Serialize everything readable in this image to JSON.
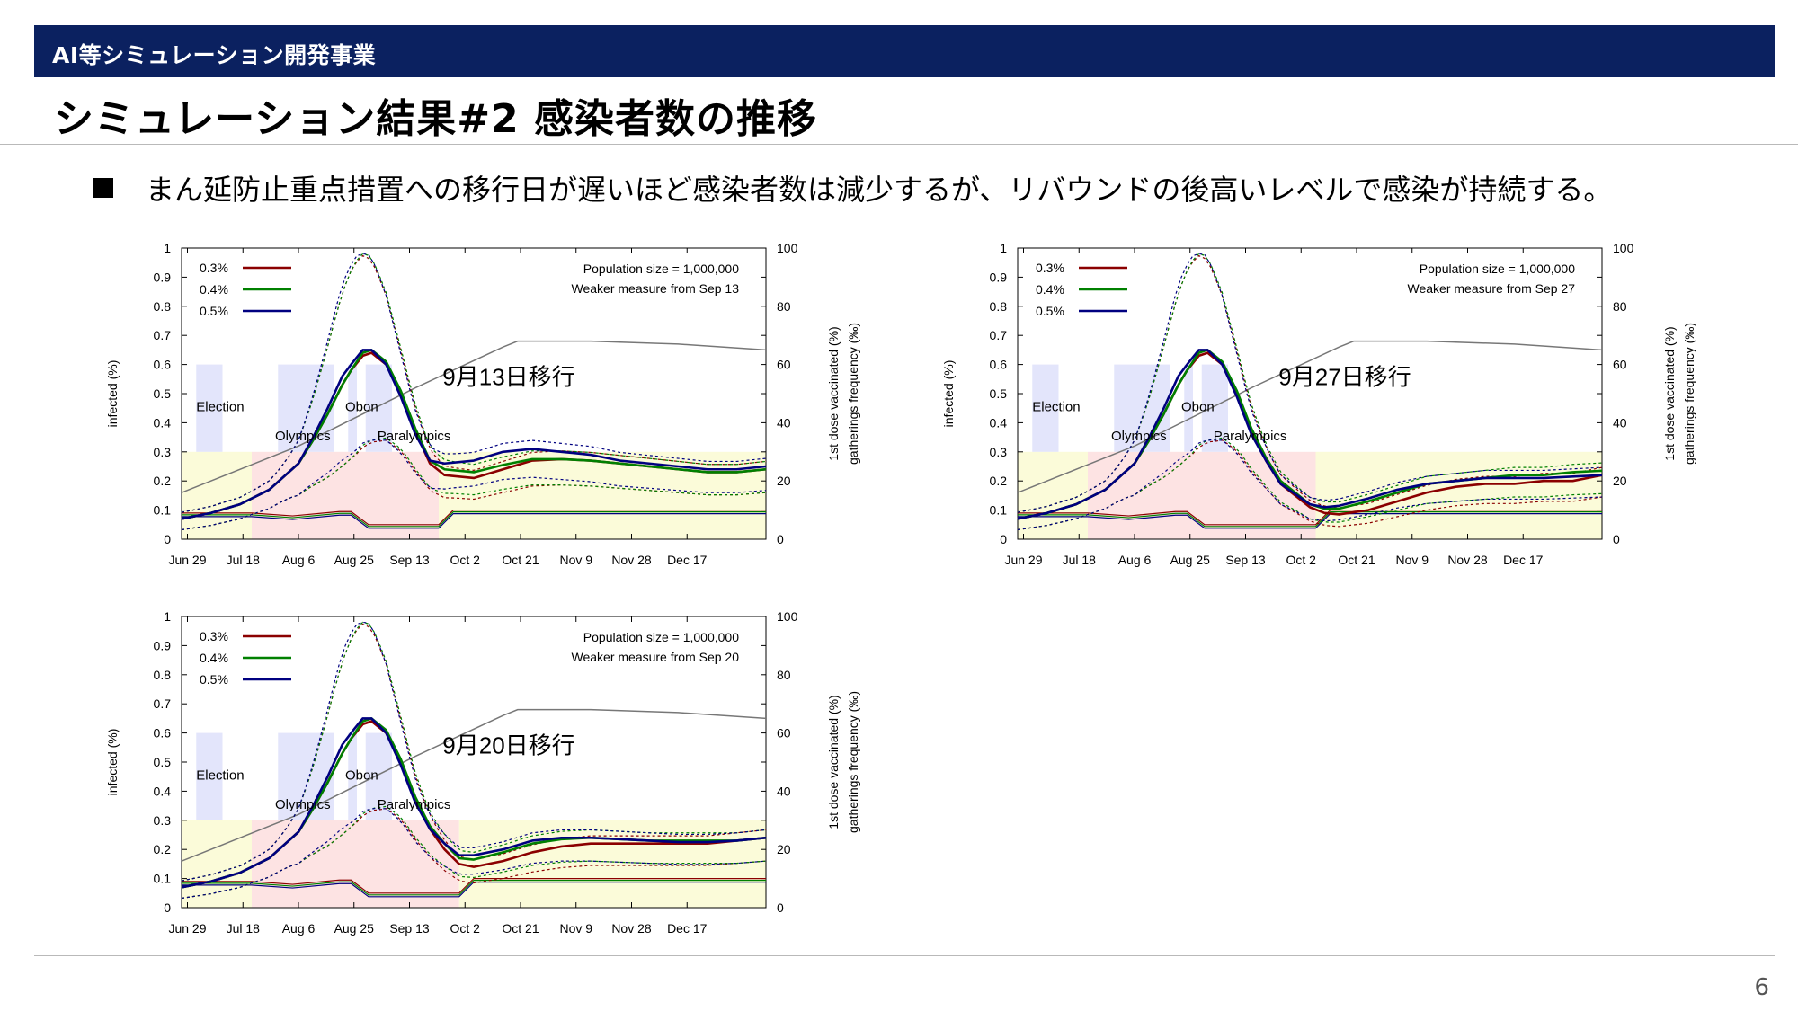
{
  "header": {
    "section": "AI等シミュレーション開発事業",
    "title": "シミュレーション結果#2 感染者数の推移",
    "bullet": "まん延防止重点措置への移行日が遅いほど感染者数は減少するが、リバウンドの後高いレベルで感染が持続する。",
    "page_number": "6"
  },
  "colors": {
    "banner": "#0b2160",
    "series_03": "#8b0000",
    "series_04": "#008000",
    "series_05": "#000080",
    "vaccinated": "#777777"
  },
  "chart_data": [
    {
      "type": "line",
      "annotation": "9月13日移行",
      "info": [
        "Population size = 1,000,000",
        "Weaker measure from Sep 13"
      ],
      "ylabel": "infected (%)",
      "y2label": [
        "1st dose vaccinated (%)",
        "gatherings frequency (‰)"
      ],
      "xticks": [
        "Jun 29",
        "Jul 18",
        "Aug 6",
        "Aug 25",
        "Sep 13",
        "Oct 2",
        "Oct 21",
        "Nov 9",
        "Nov 28",
        "Dec 17"
      ],
      "yticks": [
        "0",
        "0.1",
        "0.2",
        "0.3",
        "0.4",
        "0.5",
        "0.6",
        "0.7",
        "0.8",
        "0.9",
        "1"
      ],
      "y2ticks": [
        "0",
        "20",
        "40",
        "60",
        "80",
        "100"
      ],
      "ylim": [
        0,
        1
      ],
      "y2lim": [
        0,
        100
      ],
      "event_labels": [
        "Election",
        "Olympics",
        "Obon",
        "Paralympics"
      ],
      "series": [
        {
          "name": "0.3%",
          "x": [
            0,
            10,
            20,
            30,
            40,
            45,
            50,
            55,
            58,
            62,
            65,
            70,
            75,
            80,
            85,
            90,
            100,
            110,
            120,
            130,
            140,
            150,
            160,
            170,
            180,
            190,
            200
          ],
          "y": [
            0.07,
            0.09,
            0.12,
            0.17,
            0.26,
            0.34,
            0.43,
            0.53,
            0.58,
            0.63,
            0.64,
            0.6,
            0.5,
            0.37,
            0.26,
            0.22,
            0.21,
            0.24,
            0.27,
            0.275,
            0.27,
            0.26,
            0.25,
            0.24,
            0.23,
            0.23,
            0.24
          ]
        },
        {
          "name": "0.4%",
          "x": [
            0,
            10,
            20,
            30,
            40,
            45,
            50,
            55,
            58,
            62,
            65,
            70,
            75,
            80,
            85,
            90,
            100,
            110,
            120,
            130,
            140,
            150,
            160,
            170,
            180,
            190,
            200
          ],
          "y": [
            0.07,
            0.09,
            0.12,
            0.17,
            0.26,
            0.34,
            0.43,
            0.53,
            0.58,
            0.64,
            0.65,
            0.61,
            0.51,
            0.38,
            0.27,
            0.24,
            0.23,
            0.255,
            0.275,
            0.275,
            0.27,
            0.26,
            0.25,
            0.24,
            0.23,
            0.23,
            0.24
          ]
        },
        {
          "name": "0.5%",
          "x": [
            0,
            10,
            20,
            30,
            40,
            45,
            50,
            55,
            58,
            62,
            65,
            70,
            75,
            80,
            85,
            90,
            100,
            110,
            120,
            130,
            140,
            150,
            160,
            170,
            180,
            190,
            200
          ],
          "y": [
            0.07,
            0.09,
            0.12,
            0.17,
            0.26,
            0.35,
            0.45,
            0.56,
            0.6,
            0.65,
            0.65,
            0.6,
            0.49,
            0.36,
            0.27,
            0.26,
            0.27,
            0.3,
            0.31,
            0.3,
            0.29,
            0.27,
            0.26,
            0.25,
            0.24,
            0.24,
            0.25
          ]
        }
      ],
      "measure": {
        "y": [
          9,
          9,
          9,
          8,
          9.5,
          9.5,
          5,
          5,
          10,
          10,
          10
        ],
        "x": [
          0,
          20,
          24,
          38,
          54,
          58,
          64,
          88,
          93,
          120,
          200
        ]
      },
      "vaccinated": {
        "x": [
          0,
          40,
          80,
          110,
          115,
          140,
          170,
          200
        ],
        "y": [
          16,
          32,
          52,
          66,
          68,
          68,
          67,
          65
        ]
      }
    },
    {
      "type": "line",
      "annotation": "9月27日移行",
      "info": [
        "Population size = 1,000,000",
        "Weaker measure from Sep 27"
      ],
      "ylabel": "infected (%)",
      "y2label": [
        "1st dose vaccinated (%)",
        "gatherings frequency (‰)"
      ],
      "xticks": [
        "Jun 29",
        "Jul 18",
        "Aug 6",
        "Aug 25",
        "Sep 13",
        "Oct 2",
        "Oct 21",
        "Nov 9",
        "Nov 28",
        "Dec 17"
      ],
      "yticks": [
        "0",
        "0.1",
        "0.2",
        "0.3",
        "0.4",
        "0.5",
        "0.6",
        "0.7",
        "0.8",
        "0.9",
        "1"
      ],
      "y2ticks": [
        "0",
        "20",
        "40",
        "60",
        "80",
        "100"
      ],
      "ylim": [
        0,
        1
      ],
      "y2lim": [
        0,
        100
      ],
      "event_labels": [
        "Election",
        "Olympics",
        "Obon",
        "Paralympics"
      ],
      "series": [
        {
          "name": "0.3%",
          "x": [
            0,
            10,
            20,
            30,
            40,
            45,
            50,
            55,
            58,
            62,
            65,
            70,
            75,
            80,
            85,
            90,
            100,
            105,
            110,
            120,
            130,
            140,
            150,
            160,
            170,
            180,
            190,
            200
          ],
          "y": [
            0.07,
            0.09,
            0.12,
            0.17,
            0.26,
            0.34,
            0.43,
            0.53,
            0.58,
            0.63,
            0.64,
            0.6,
            0.5,
            0.37,
            0.27,
            0.19,
            0.11,
            0.09,
            0.085,
            0.1,
            0.13,
            0.16,
            0.18,
            0.19,
            0.19,
            0.2,
            0.2,
            0.22
          ]
        },
        {
          "name": "0.4%",
          "x": [
            0,
            10,
            20,
            30,
            40,
            45,
            50,
            55,
            58,
            62,
            65,
            70,
            75,
            80,
            85,
            90,
            100,
            105,
            110,
            120,
            130,
            140,
            150,
            160,
            170,
            180,
            190,
            200
          ],
          "y": [
            0.07,
            0.09,
            0.12,
            0.17,
            0.26,
            0.34,
            0.43,
            0.53,
            0.58,
            0.64,
            0.65,
            0.61,
            0.51,
            0.38,
            0.28,
            0.2,
            0.12,
            0.105,
            0.105,
            0.13,
            0.16,
            0.19,
            0.2,
            0.21,
            0.22,
            0.22,
            0.23,
            0.235
          ]
        },
        {
          "name": "0.5%",
          "x": [
            0,
            10,
            20,
            30,
            40,
            45,
            50,
            55,
            58,
            62,
            65,
            70,
            75,
            80,
            85,
            90,
            100,
            105,
            110,
            120,
            130,
            140,
            150,
            160,
            170,
            180,
            190,
            200
          ],
          "y": [
            0.07,
            0.09,
            0.12,
            0.17,
            0.26,
            0.35,
            0.45,
            0.56,
            0.6,
            0.65,
            0.65,
            0.6,
            0.49,
            0.36,
            0.27,
            0.19,
            0.12,
            0.11,
            0.115,
            0.14,
            0.17,
            0.19,
            0.2,
            0.21,
            0.21,
            0.21,
            0.215,
            0.22
          ]
        }
      ],
      "measure": {
        "y": [
          9,
          9,
          9,
          8,
          9.5,
          9.5,
          5,
          5,
          10,
          10,
          10
        ],
        "x": [
          0,
          20,
          24,
          38,
          54,
          58,
          64,
          102,
          107,
          120,
          200
        ]
      },
      "vaccinated": {
        "x": [
          0,
          40,
          80,
          110,
          115,
          140,
          170,
          200
        ],
        "y": [
          16,
          32,
          52,
          66,
          68,
          68,
          67,
          65
        ]
      }
    },
    {
      "type": "line",
      "annotation": "9月20日移行",
      "info": [
        "Population size = 1,000,000",
        "Weaker measure from Sep 20"
      ],
      "ylabel": "infected (%)",
      "y2label": [
        "1st dose vaccinated (%)",
        "gatherings frequency (‰)"
      ],
      "xticks": [
        "Jun 29",
        "Jul 18",
        "Aug 6",
        "Aug 25",
        "Sep 13",
        "Oct 2",
        "Oct 21",
        "Nov 9",
        "Nov 28",
        "Dec 17"
      ],
      "yticks": [
        "0",
        "0.1",
        "0.2",
        "0.3",
        "0.4",
        "0.5",
        "0.6",
        "0.7",
        "0.8",
        "0.9",
        "1"
      ],
      "y2ticks": [
        "0",
        "20",
        "40",
        "60",
        "80",
        "100"
      ],
      "ylim": [
        0,
        1
      ],
      "y2lim": [
        0,
        100
      ],
      "event_labels": [
        "Election",
        "Olympics",
        "Obon",
        "Paralympics"
      ],
      "series": [
        {
          "name": "0.3%",
          "x": [
            0,
            10,
            20,
            30,
            40,
            45,
            50,
            55,
            58,
            62,
            65,
            70,
            75,
            80,
            85,
            90,
            95,
            100,
            110,
            120,
            130,
            140,
            150,
            160,
            170,
            180,
            190,
            200
          ],
          "y": [
            0.07,
            0.09,
            0.12,
            0.17,
            0.26,
            0.34,
            0.43,
            0.53,
            0.58,
            0.63,
            0.64,
            0.6,
            0.5,
            0.37,
            0.27,
            0.2,
            0.15,
            0.14,
            0.16,
            0.19,
            0.21,
            0.22,
            0.22,
            0.22,
            0.22,
            0.22,
            0.23,
            0.24
          ]
        },
        {
          "name": "0.4%",
          "x": [
            0,
            10,
            20,
            30,
            40,
            45,
            50,
            55,
            58,
            62,
            65,
            70,
            75,
            80,
            85,
            90,
            95,
            100,
            110,
            120,
            130,
            140,
            150,
            160,
            170,
            180,
            190,
            200
          ],
          "y": [
            0.07,
            0.09,
            0.12,
            0.17,
            0.26,
            0.34,
            0.43,
            0.53,
            0.58,
            0.64,
            0.65,
            0.61,
            0.51,
            0.38,
            0.28,
            0.22,
            0.17,
            0.165,
            0.19,
            0.22,
            0.235,
            0.24,
            0.235,
            0.23,
            0.23,
            0.23,
            0.23,
            0.24
          ]
        },
        {
          "name": "0.5%",
          "x": [
            0,
            10,
            20,
            30,
            40,
            45,
            50,
            55,
            58,
            62,
            65,
            70,
            75,
            80,
            85,
            90,
            95,
            100,
            110,
            120,
            130,
            140,
            150,
            160,
            170,
            180,
            190,
            200
          ],
          "y": [
            0.07,
            0.09,
            0.12,
            0.17,
            0.26,
            0.35,
            0.45,
            0.56,
            0.6,
            0.65,
            0.65,
            0.6,
            0.49,
            0.36,
            0.27,
            0.22,
            0.18,
            0.18,
            0.2,
            0.23,
            0.24,
            0.24,
            0.235,
            0.23,
            0.225,
            0.225,
            0.23,
            0.24
          ]
        }
      ],
      "measure": {
        "y": [
          9,
          9,
          9,
          8,
          9.5,
          9.5,
          5,
          5,
          10,
          10,
          10
        ],
        "x": [
          0,
          20,
          24,
          38,
          54,
          58,
          64,
          95,
          100,
          120,
          200
        ]
      },
      "vaccinated": {
        "x": [
          0,
          40,
          80,
          110,
          115,
          140,
          170,
          200
        ],
        "y": [
          16,
          32,
          52,
          66,
          68,
          68,
          67,
          65
        ]
      }
    }
  ]
}
